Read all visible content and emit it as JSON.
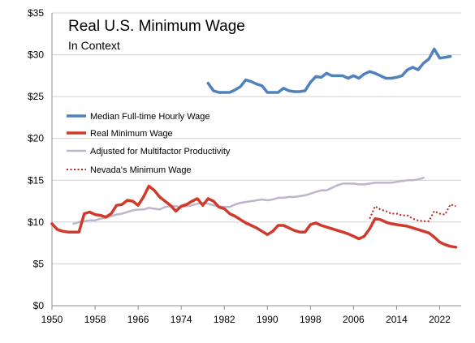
{
  "chart_data": {
    "type": "line",
    "title": "Real U.S. Minimum Wage",
    "subtitle": "In Context",
    "xlim": [
      1950,
      2026
    ],
    "ylim": [
      0,
      35
    ],
    "x_ticks": [
      "1950",
      "1958",
      "1966",
      "1974",
      "1982",
      "1990",
      "1998",
      "2006",
      "2014",
      "2022"
    ],
    "x_tick_values": [
      1950,
      1958,
      1966,
      1974,
      1982,
      1990,
      1998,
      2006,
      2014,
      2022
    ],
    "y_ticks": [
      "$0",
      "$5",
      "$10",
      "$15",
      "$20",
      "$25",
      "$30",
      "$35"
    ],
    "y_tick_values": [
      0,
      5,
      10,
      15,
      20,
      25,
      30,
      35
    ],
    "grid": "horizontal",
    "legend_position": "center-left",
    "series": [
      {
        "name": "Median Full-time Hourly Wage",
        "color": "#4F81BD",
        "style": "solid",
        "points": [
          [
            1979,
            26.6
          ],
          [
            1980,
            25.7
          ],
          [
            1981,
            25.5
          ],
          [
            1982,
            25.5
          ],
          [
            1983,
            25.5
          ],
          [
            1984,
            25.8
          ],
          [
            1985,
            26.2
          ],
          [
            1986,
            27.0
          ],
          [
            1987,
            26.8
          ],
          [
            1988,
            26.5
          ],
          [
            1989,
            26.3
          ],
          [
            1990,
            25.5
          ],
          [
            1991,
            25.5
          ],
          [
            1992,
            25.5
          ],
          [
            1993,
            26.0
          ],
          [
            1994,
            25.7
          ],
          [
            1995,
            25.6
          ],
          [
            1996,
            25.6
          ],
          [
            1997,
            25.7
          ],
          [
            1998,
            26.7
          ],
          [
            1999,
            27.4
          ],
          [
            2000,
            27.3
          ],
          [
            2001,
            27.8
          ],
          [
            2002,
            27.5
          ],
          [
            2003,
            27.5
          ],
          [
            2004,
            27.5
          ],
          [
            2005,
            27.2
          ],
          [
            2006,
            27.5
          ],
          [
            2007,
            27.2
          ],
          [
            2008,
            27.7
          ],
          [
            2009,
            28.0
          ],
          [
            2010,
            27.8
          ],
          [
            2011,
            27.5
          ],
          [
            2012,
            27.2
          ],
          [
            2013,
            27.2
          ],
          [
            2014,
            27.3
          ],
          [
            2015,
            27.5
          ],
          [
            2016,
            28.2
          ],
          [
            2017,
            28.5
          ],
          [
            2018,
            28.2
          ],
          [
            2019,
            29.0
          ],
          [
            2020,
            29.5
          ],
          [
            2021,
            30.7
          ],
          [
            2022,
            29.6
          ],
          [
            2023,
            29.7
          ],
          [
            2024,
            29.8
          ]
        ]
      },
      {
        "name": "Real Minimum Wage",
        "color": "#D03A2B",
        "style": "solid",
        "points": [
          [
            1950,
            9.8
          ],
          [
            1951,
            9.1
          ],
          [
            1952,
            8.9
          ],
          [
            1953,
            8.8
          ],
          [
            1954,
            8.8
          ],
          [
            1955,
            8.8
          ],
          [
            1956,
            11.0
          ],
          [
            1957,
            11.2
          ],
          [
            1958,
            10.9
          ],
          [
            1959,
            10.8
          ],
          [
            1960,
            10.6
          ],
          [
            1961,
            11.0
          ],
          [
            1962,
            12.0
          ],
          [
            1963,
            12.1
          ],
          [
            1964,
            12.6
          ],
          [
            1965,
            12.5
          ],
          [
            1966,
            12.0
          ],
          [
            1967,
            13.0
          ],
          [
            1968,
            14.3
          ],
          [
            1969,
            13.8
          ],
          [
            1970,
            13.0
          ],
          [
            1971,
            12.5
          ],
          [
            1972,
            12.0
          ],
          [
            1973,
            11.3
          ],
          [
            1974,
            11.9
          ],
          [
            1975,
            12.1
          ],
          [
            1976,
            12.5
          ],
          [
            1977,
            12.8
          ],
          [
            1978,
            12.0
          ],
          [
            1979,
            12.8
          ],
          [
            1980,
            12.5
          ],
          [
            1981,
            11.8
          ],
          [
            1982,
            11.6
          ],
          [
            1983,
            11.0
          ],
          [
            1984,
            10.7
          ],
          [
            1985,
            10.3
          ],
          [
            1986,
            9.9
          ],
          [
            1987,
            9.6
          ],
          [
            1988,
            9.3
          ],
          [
            1989,
            8.9
          ],
          [
            1990,
            8.5
          ],
          [
            1991,
            8.9
          ],
          [
            1992,
            9.6
          ],
          [
            1993,
            9.6
          ],
          [
            1994,
            9.3
          ],
          [
            1995,
            9.0
          ],
          [
            1996,
            8.8
          ],
          [
            1997,
            8.8
          ],
          [
            1998,
            9.7
          ],
          [
            1999,
            9.9
          ],
          [
            2000,
            9.6
          ],
          [
            2001,
            9.4
          ],
          [
            2002,
            9.2
          ],
          [
            2003,
            9.0
          ],
          [
            2004,
            8.8
          ],
          [
            2005,
            8.6
          ],
          [
            2006,
            8.3
          ],
          [
            2007,
            8.0
          ],
          [
            2008,
            8.3
          ],
          [
            2009,
            9.2
          ],
          [
            2010,
            10.4
          ],
          [
            2011,
            10.3
          ],
          [
            2012,
            10.0
          ],
          [
            2013,
            9.8
          ],
          [
            2014,
            9.7
          ],
          [
            2015,
            9.6
          ],
          [
            2016,
            9.5
          ],
          [
            2017,
            9.3
          ],
          [
            2018,
            9.1
          ],
          [
            2019,
            8.9
          ],
          [
            2020,
            8.7
          ],
          [
            2021,
            8.2
          ],
          [
            2022,
            7.6
          ],
          [
            2023,
            7.3
          ],
          [
            2024,
            7.1
          ],
          [
            2025,
            7.0
          ]
        ]
      },
      {
        "name": "Adjusted for Multifactor Productivity",
        "color": "#BFB4CC",
        "style": "solid",
        "points": [
          [
            1954,
            9.8
          ],
          [
            1955,
            10.0
          ],
          [
            1956,
            10.1
          ],
          [
            1957,
            10.2
          ],
          [
            1958,
            10.2
          ],
          [
            1959,
            10.4
          ],
          [
            1960,
            10.5
          ],
          [
            1961,
            10.7
          ],
          [
            1962,
            10.9
          ],
          [
            1963,
            11.0
          ],
          [
            1964,
            11.2
          ],
          [
            1965,
            11.4
          ],
          [
            1966,
            11.5
          ],
          [
            1967,
            11.5
          ],
          [
            1968,
            11.7
          ],
          [
            1969,
            11.6
          ],
          [
            1970,
            11.5
          ],
          [
            1971,
            11.8
          ],
          [
            1972,
            11.9
          ],
          [
            1973,
            11.9
          ],
          [
            1974,
            11.8
          ],
          [
            1975,
            11.9
          ],
          [
            1976,
            12.0
          ],
          [
            1977,
            12.2
          ],
          [
            1978,
            12.3
          ],
          [
            1979,
            12.2
          ],
          [
            1980,
            12.0
          ],
          [
            1981,
            11.9
          ],
          [
            1982,
            11.8
          ],
          [
            1983,
            11.8
          ],
          [
            1984,
            12.1
          ],
          [
            1985,
            12.3
          ],
          [
            1986,
            12.4
          ],
          [
            1987,
            12.5
          ],
          [
            1988,
            12.6
          ],
          [
            1989,
            12.7
          ],
          [
            1990,
            12.6
          ],
          [
            1991,
            12.7
          ],
          [
            1992,
            12.9
          ],
          [
            1993,
            12.9
          ],
          [
            1994,
            13.0
          ],
          [
            1995,
            13.0
          ],
          [
            1996,
            13.1
          ],
          [
            1997,
            13.2
          ],
          [
            1998,
            13.4
          ],
          [
            1999,
            13.6
          ],
          [
            2000,
            13.8
          ],
          [
            2001,
            13.8
          ],
          [
            2002,
            14.1
          ],
          [
            2003,
            14.4
          ],
          [
            2004,
            14.6
          ],
          [
            2005,
            14.6
          ],
          [
            2006,
            14.6
          ],
          [
            2007,
            14.5
          ],
          [
            2008,
            14.5
          ],
          [
            2009,
            14.6
          ],
          [
            2010,
            14.7
          ],
          [
            2011,
            14.7
          ],
          [
            2012,
            14.7
          ],
          [
            2013,
            14.7
          ],
          [
            2014,
            14.8
          ],
          [
            2015,
            14.9
          ],
          [
            2016,
            15.0
          ],
          [
            2017,
            15.0
          ],
          [
            2018,
            15.1
          ],
          [
            2019,
            15.3
          ]
        ]
      },
      {
        "name": "Nevada's Minimum Wage",
        "color": "#B22222",
        "style": "dotted",
        "points": [
          [
            2009,
            10.4
          ],
          [
            2010,
            11.9
          ],
          [
            2011,
            11.5
          ],
          [
            2012,
            11.3
          ],
          [
            2013,
            11.0
          ],
          [
            2014,
            11.0
          ],
          [
            2015,
            10.8
          ],
          [
            2016,
            10.8
          ],
          [
            2017,
            10.4
          ],
          [
            2018,
            10.2
          ],
          [
            2019,
            10.1
          ],
          [
            2020,
            10.1
          ],
          [
            2021,
            11.3
          ],
          [
            2022,
            11.0
          ],
          [
            2023,
            10.9
          ],
          [
            2024,
            12.1
          ],
          [
            2025,
            11.9
          ]
        ]
      }
    ]
  }
}
